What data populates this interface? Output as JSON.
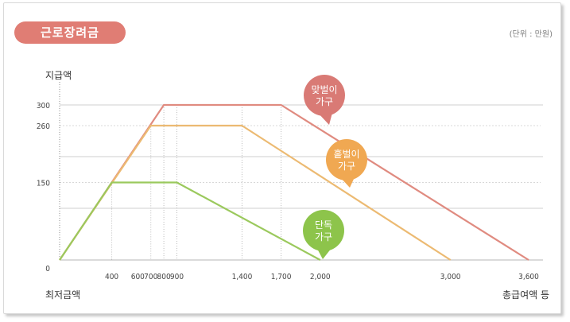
{
  "chart_data": {
    "type": "line",
    "title": "근로장려금",
    "unit": "(단위 : 만원)",
    "ylabel": "지급액",
    "xlabel_left": "최저금액",
    "xlabel_right": "총급여액 등",
    "xlim": [
      0,
      3600
    ],
    "ylim": [
      0,
      300
    ],
    "y_ticks": [
      0,
      150,
      260,
      300
    ],
    "y_tick_labels": [
      "0",
      "150",
      "260",
      "300"
    ],
    "x_ticks": [
      400,
      600,
      700,
      800,
      900,
      1400,
      1700,
      2000,
      3000,
      3600
    ],
    "x_tick_labels": [
      "400",
      "600",
      "700",
      "800",
      "900",
      "1,400",
      "1,700",
      "2,000",
      "3,000",
      "3,600"
    ],
    "grid": true,
    "series": [
      {
        "name": "맞벌이 가구",
        "label_lines": [
          "맞벌이",
          "가구"
        ],
        "color": "#e08b80",
        "bubble_color": "#d97a75",
        "points": [
          [
            0,
            0
          ],
          [
            800,
            300
          ],
          [
            1700,
            300
          ],
          [
            3600,
            0
          ]
        ]
      },
      {
        "name": "홑벌이 가구",
        "label_lines": [
          "홑벌이",
          "가구"
        ],
        "color": "#ecba72",
        "bubble_color": "#f0a852",
        "points": [
          [
            0,
            0
          ],
          [
            700,
            260
          ],
          [
            1400,
            260
          ],
          [
            3000,
            0
          ]
        ]
      },
      {
        "name": "단독 가구",
        "label_lines": [
          "단독",
          "가구"
        ],
        "color": "#9bc95d",
        "bubble_color": "#8dc44b",
        "points": [
          [
            0,
            0
          ],
          [
            400,
            150
          ],
          [
            900,
            150
          ],
          [
            2000,
            0
          ]
        ]
      }
    ]
  }
}
